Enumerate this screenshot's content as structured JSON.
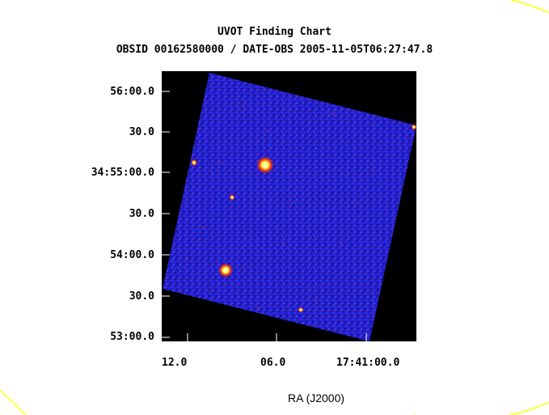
{
  "title": "UVOT Finding Chart",
  "subtitle": "OBSID 00162580000 / DATE-OBS 2005-11-05T06:27:47.8",
  "axes": {
    "y_ticks": [
      "56:00.0",
      "30.0",
      "34:55:00.0",
      "30.0",
      "54:00.0",
      "30.0",
      "53:00.0"
    ],
    "x_ticks": [
      "12.0",
      "06.0",
      "17:41:00.0"
    ],
    "x_label": "RA (J2000)"
  },
  "colors": {
    "background": "#000000",
    "image_field": "#2020d8",
    "circle": "#ffff00",
    "source_core": "#ffffff",
    "source_halo": "#ff5500"
  }
}
